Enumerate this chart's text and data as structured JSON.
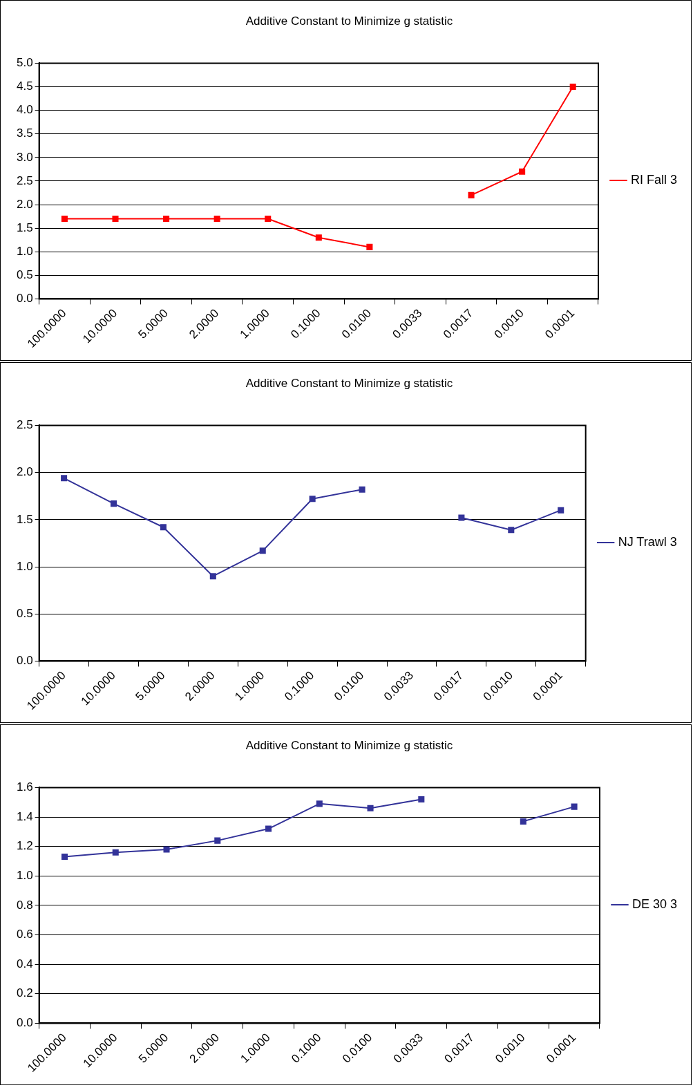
{
  "chart_data": [
    {
      "type": "line",
      "title": "Additive Constant to Minimize g statistic",
      "categories": [
        "100.0000",
        "10.0000",
        "5.0000",
        "2.0000",
        "1.0000",
        "0.1000",
        "0.0100",
        "0.0033",
        "0.0017",
        "0.0010",
        "0.0001"
      ],
      "series": [
        {
          "name": "RI Fall 3",
          "color": "#ff0000",
          "values": [
            1.7,
            1.7,
            1.7,
            1.7,
            1.7,
            1.3,
            1.1,
            null,
            2.2,
            2.7,
            4.5
          ]
        }
      ],
      "ylim": [
        0,
        5
      ],
      "yticks": [
        {
          "value": 0,
          "label": "0.0"
        },
        {
          "value": 0.5,
          "label": "0.5"
        },
        {
          "value": 1,
          "label": "1.0"
        },
        {
          "value": 1.5,
          "label": "1.5"
        },
        {
          "value": 2,
          "label": "2.0"
        },
        {
          "value": 2.5,
          "label": "2.5"
        },
        {
          "value": 3,
          "label": "3.0"
        },
        {
          "value": 3.5,
          "label": "3.5"
        },
        {
          "value": 4,
          "label": "4.0"
        },
        {
          "value": 4.5,
          "label": "4.5"
        },
        {
          "value": 5,
          "label": "5.0"
        }
      ],
      "grid": "y",
      "legend": "right",
      "marker": "square",
      "line_style": "solid"
    },
    {
      "type": "line",
      "title": "Additive Constant to Minimize g statistic",
      "categories": [
        "100.0000",
        "10.0000",
        "5.0000",
        "2.0000",
        "1.0000",
        "0.1000",
        "0.0100",
        "0.0033",
        "0.0017",
        "0.0010",
        "0.0001"
      ],
      "series": [
        {
          "name": "NJ Trawl 3",
          "color": "#333399",
          "values": [
            1.94,
            1.67,
            1.42,
            0.9,
            1.17,
            1.72,
            1.82,
            null,
            1.52,
            1.39,
            1.6
          ]
        }
      ],
      "ylim": [
        0,
        2.5
      ],
      "yticks": [
        {
          "value": 0,
          "label": "0.0"
        },
        {
          "value": 0.5,
          "label": "0.5"
        },
        {
          "value": 1,
          "label": "1.0"
        },
        {
          "value": 1.5,
          "label": "1.5"
        },
        {
          "value": 2,
          "label": "2.0"
        },
        {
          "value": 2.5,
          "label": "2.5"
        }
      ],
      "grid": "y",
      "legend": "right",
      "marker": "square",
      "line_style": "solid"
    },
    {
      "type": "line",
      "title": "Additive Constant to Minimize g statistic",
      "categories": [
        "100.0000",
        "10.0000",
        "5.0000",
        "2.0000",
        "1.0000",
        "0.1000",
        "0.0100",
        "0.0033",
        "0.0017",
        "0.0010",
        "0.0001"
      ],
      "series": [
        {
          "name": "DE 30 3",
          "color": "#333399",
          "values": [
            1.13,
            1.16,
            1.18,
            1.24,
            1.32,
            1.49,
            1.46,
            1.52,
            null,
            1.37,
            1.47
          ]
        }
      ],
      "ylim": [
        0,
        1.6
      ],
      "yticks": [
        {
          "value": 0,
          "label": "0.0"
        },
        {
          "value": 0.2,
          "label": "0.2"
        },
        {
          "value": 0.4,
          "label": "0.4"
        },
        {
          "value": 0.6,
          "label": "0.6"
        },
        {
          "value": 0.8,
          "label": "0.8"
        },
        {
          "value": 1,
          "label": "1.0"
        },
        {
          "value": 1.2,
          "label": "1.2"
        },
        {
          "value": 1.4,
          "label": "1.4"
        },
        {
          "value": 1.6,
          "label": "1.6"
        }
      ],
      "grid": "y",
      "legend": "right",
      "marker": "square",
      "line_style": "solid"
    }
  ]
}
